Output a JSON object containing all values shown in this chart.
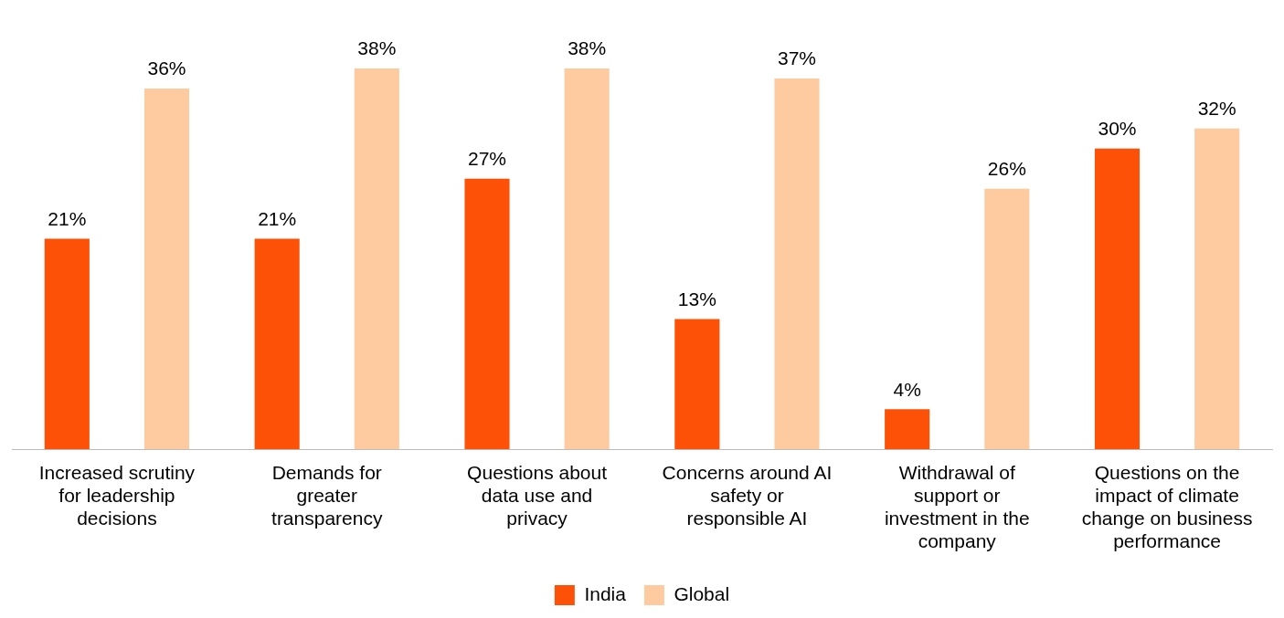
{
  "chart_data": {
    "type": "bar",
    "categories": [
      "Increased scrutiny for leadership decisions",
      "Demands for greater transparency",
      "Questions about data use and privacy",
      "Concerns around AI safety or responsible AI",
      "Withdrawal of support or investment in the company",
      "Questions on the impact of climate change on business performance"
    ],
    "series": [
      {
        "name": "India",
        "color": "#fd5108",
        "values": [
          21,
          21,
          27,
          13,
          4,
          30
        ],
        "value_labels": [
          "21%",
          "21%",
          "27%",
          "13%",
          "4%",
          "30%"
        ]
      },
      {
        "name": "Global",
        "color": "#fecba0",
        "values": [
          36,
          38,
          38,
          37,
          26,
          32
        ],
        "value_labels": [
          "36%",
          "38%",
          "38%",
          "37%",
          "26%",
          "32%"
        ]
      }
    ],
    "legend": "bottom",
    "grid": false
  }
}
